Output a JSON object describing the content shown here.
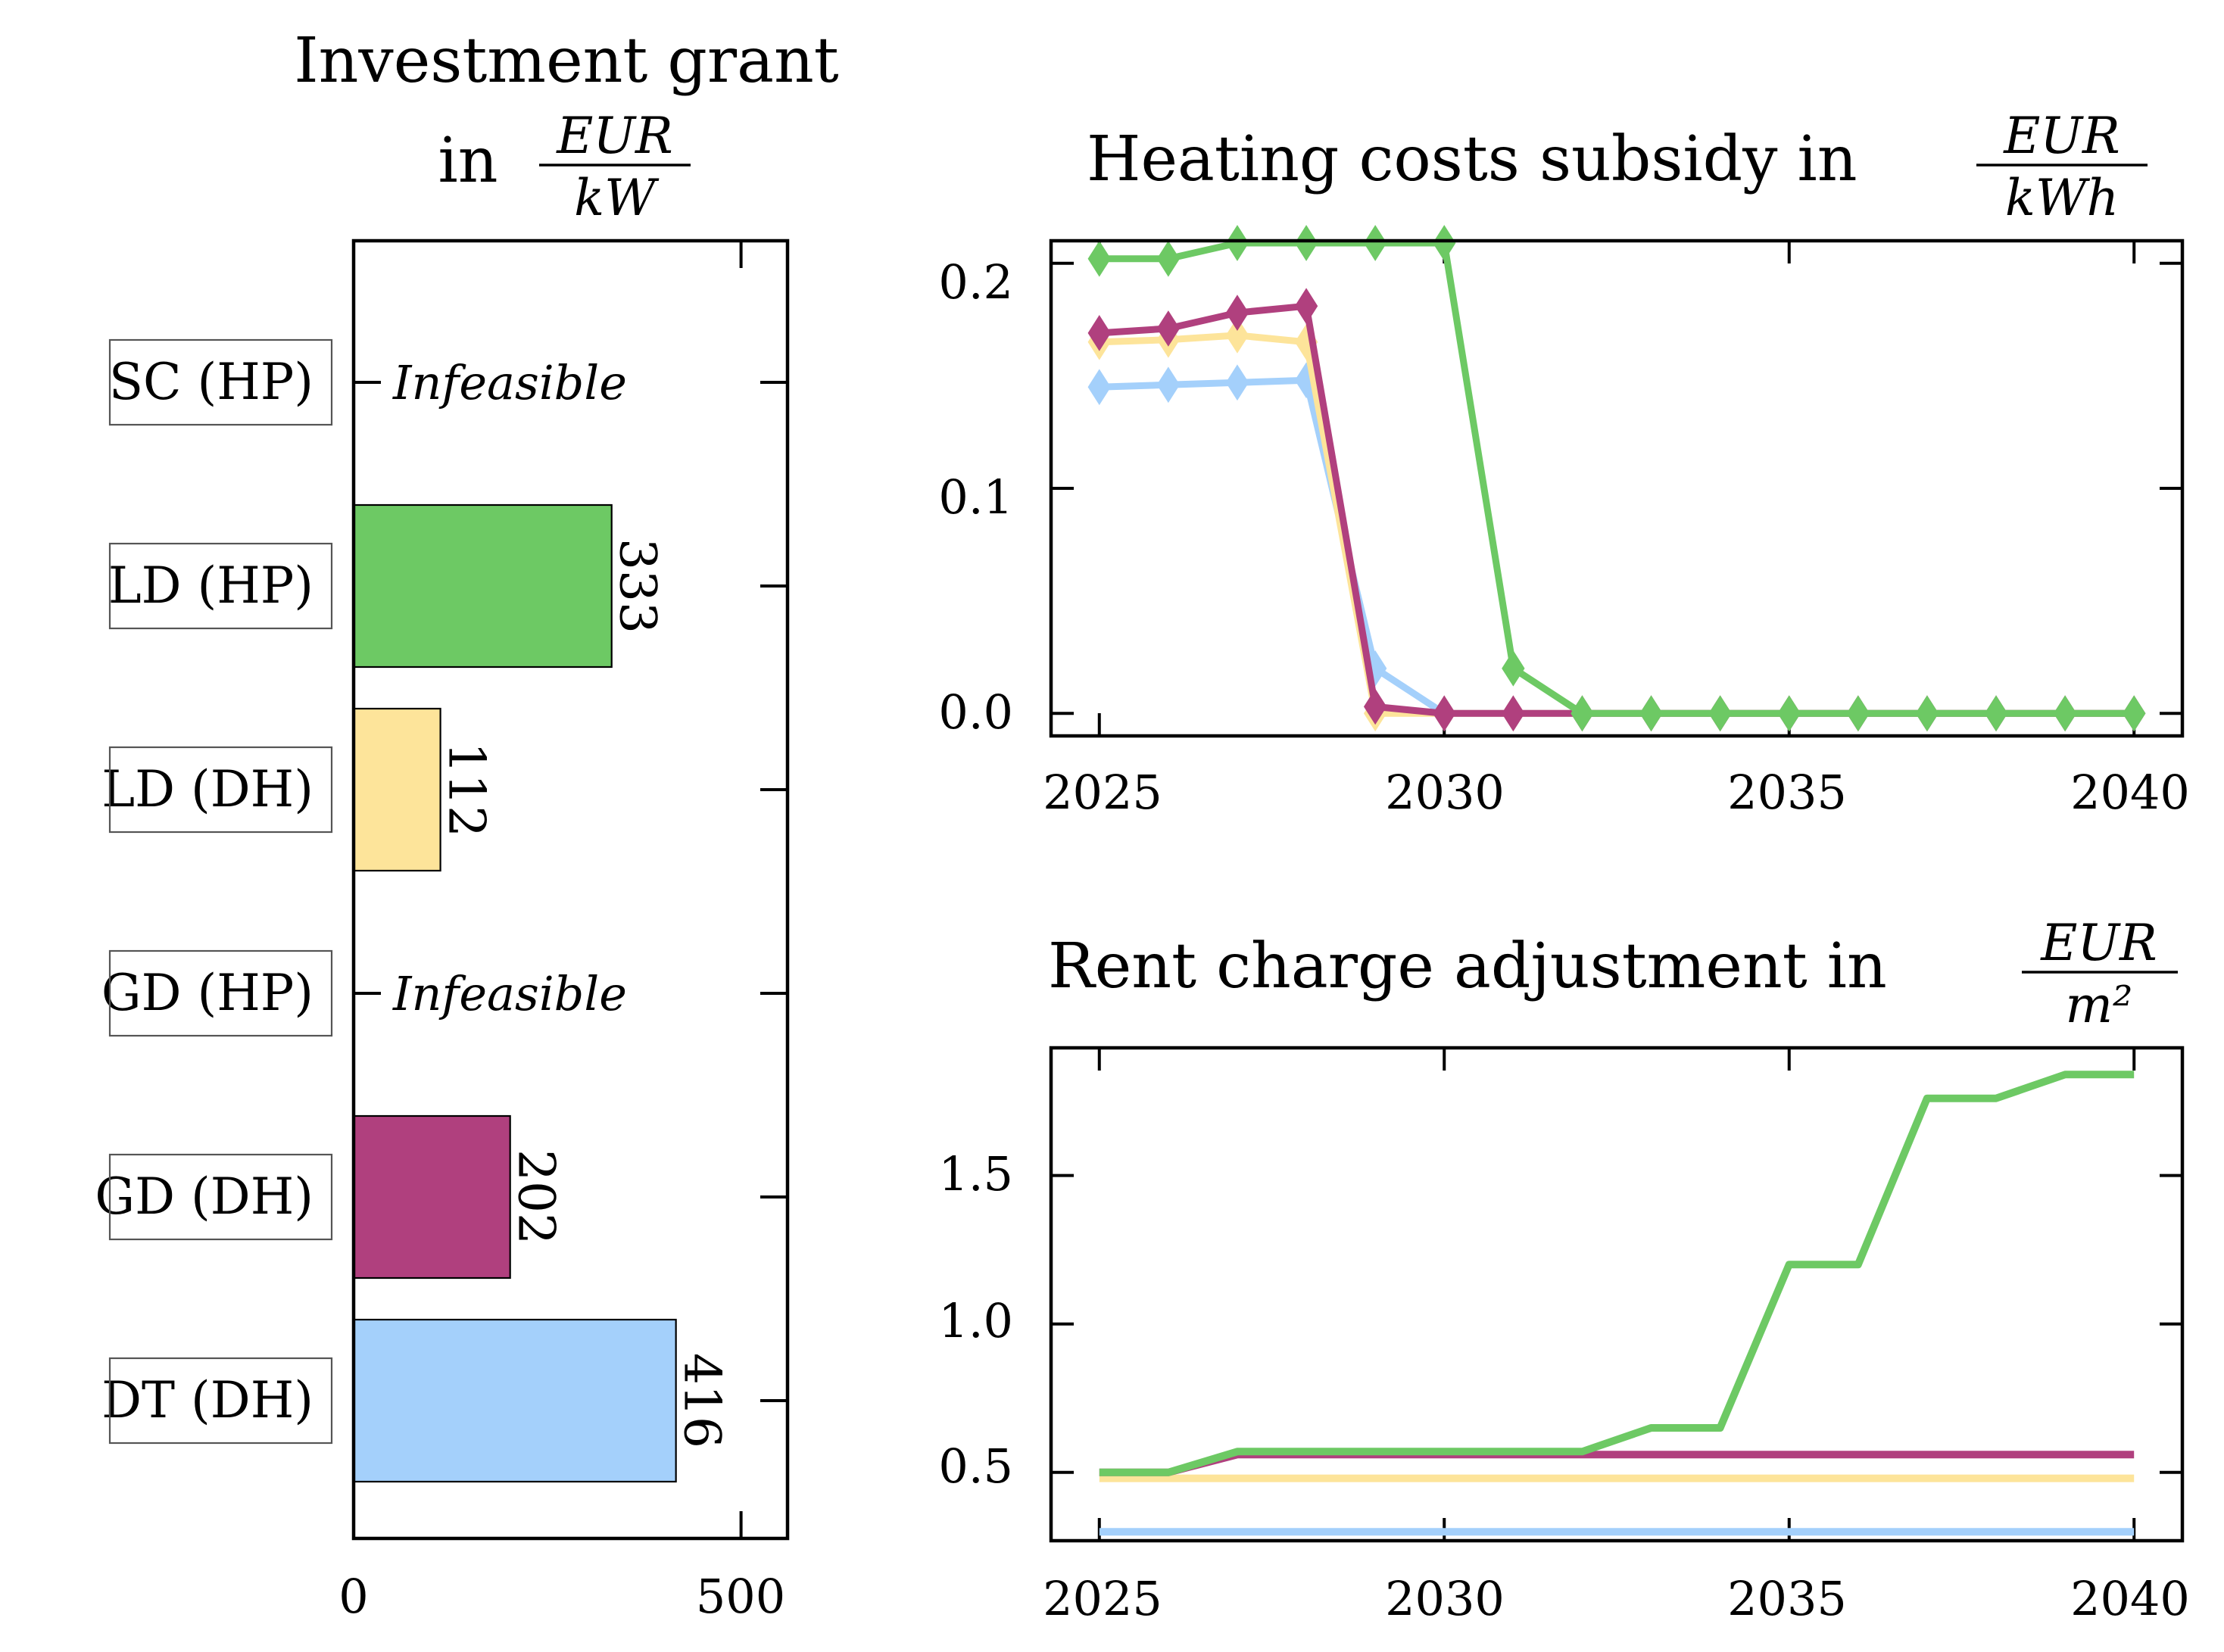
{
  "charts": {
    "grant": {
      "title_line1": "Investment grant",
      "title_in": "in",
      "unit_num": "EUR",
      "unit_den": "kW",
      "xticks": [
        "0",
        "500"
      ]
    },
    "heat": {
      "title": "Heating costs subsidy in",
      "unit_num": "EUR",
      "unit_den": "kWh",
      "yticks": [
        "0.0",
        "0.1",
        "0.2"
      ],
      "xticks": [
        "2025",
        "2030",
        "2035",
        "2040"
      ]
    },
    "rent": {
      "title": "Rent charge adjustment in",
      "unit_num": "EUR",
      "unit_den": "m²",
      "yticks": [
        "0.5",
        "1.0",
        "1.5"
      ],
      "xticks": [
        "2025",
        "2030",
        "2035",
        "2040"
      ]
    }
  },
  "colors": {
    "green": "#6dc964",
    "yellow": "#fde49a",
    "magenta": "#b0407e",
    "blue": "#a4d0fb"
  },
  "chart_data": [
    {
      "type": "bar",
      "orientation": "horizontal",
      "title": "Investment grant in EUR/kW",
      "categories": [
        "SC (HP)",
        "LD (HP)",
        "LD (DH)",
        "GD (HP)",
        "GD (DH)",
        "DT (DH)"
      ],
      "values": [
        null,
        333,
        112,
        null,
        202,
        416
      ],
      "labels": [
        "Infeasible",
        "333",
        "112",
        "Infeasible",
        "202",
        "416"
      ],
      "colors": [
        null,
        "#6dc964",
        "#fde49a",
        null,
        "#b0407e",
        "#a4d0fb"
      ],
      "xlim": [
        0,
        560
      ]
    },
    {
      "type": "line",
      "title": "Heating costs subsidy in EUR/kWh",
      "x": [
        2025,
        2026,
        2027,
        2028,
        2029,
        2030,
        2031,
        2032,
        2033,
        2034,
        2035,
        2036,
        2037,
        2038,
        2039,
        2040
      ],
      "xlim": [
        2024.3,
        2040.7
      ],
      "ylim": [
        -0.01,
        0.21
      ],
      "series": [
        {
          "color": "#a4d0fb",
          "values": [
            0.145,
            0.146,
            0.147,
            0.148,
            0.02,
            0.0,
            0.0,
            0.0,
            0.0,
            0.0,
            0.0,
            0.0,
            0.0,
            0.0,
            0.0,
            0.0
          ]
        },
        {
          "color": "#fde49a",
          "values": [
            0.165,
            0.166,
            0.168,
            0.165,
            0.0,
            0.0,
            0.0,
            0.0,
            0.0,
            0.0,
            0.0,
            0.0,
            0.0,
            0.0,
            0.0,
            0.0
          ]
        },
        {
          "color": "#b0407e",
          "values": [
            0.169,
            0.171,
            0.178,
            0.181,
            0.003,
            0.0,
            0.0,
            0.0,
            0.0,
            0.0,
            0.0,
            0.0,
            0.0,
            0.0,
            0.0,
            0.0
          ]
        },
        {
          "color": "#6dc964",
          "values": [
            0.202,
            0.202,
            0.209,
            0.209,
            0.209,
            0.209,
            0.02,
            0.0,
            0.0,
            0.0,
            0.0,
            0.0,
            0.0,
            0.0,
            0.0,
            0.0
          ]
        }
      ]
    },
    {
      "type": "line",
      "title": "Rent charge adjustment in EUR/m²",
      "x": [
        2025,
        2026,
        2027,
        2028,
        2029,
        2030,
        2031,
        2032,
        2033,
        2034,
        2035,
        2036,
        2037,
        2038,
        2039,
        2040
      ],
      "xlim": [
        2024.3,
        2040.7
      ],
      "ylim": [
        0.27,
        1.93
      ],
      "series": [
        {
          "color": "#a4d0fb",
          "values": [
            0.3,
            0.3,
            0.3,
            0.3,
            0.3,
            0.3,
            0.3,
            0.3,
            0.3,
            0.3,
            0.3,
            0.3,
            0.3,
            0.3,
            0.3,
            0.3
          ]
        },
        {
          "color": "#fde49a",
          "values": [
            0.48,
            0.48,
            0.48,
            0.48,
            0.48,
            0.48,
            0.48,
            0.48,
            0.48,
            0.48,
            0.48,
            0.48,
            0.48,
            0.48,
            0.48,
            0.48
          ]
        },
        {
          "color": "#b0407e",
          "values": [
            0.5,
            0.5,
            0.56,
            0.56,
            0.56,
            0.56,
            0.56,
            0.56,
            0.56,
            0.56,
            0.56,
            0.56,
            0.56,
            0.56,
            0.56,
            0.56
          ]
        },
        {
          "color": "#6dc964",
          "values": [
            0.5,
            0.5,
            0.57,
            0.57,
            0.57,
            0.57,
            0.57,
            0.57,
            0.65,
            0.65,
            1.2,
            1.2,
            1.76,
            1.76,
            1.84,
            1.84
          ]
        }
      ]
    }
  ]
}
